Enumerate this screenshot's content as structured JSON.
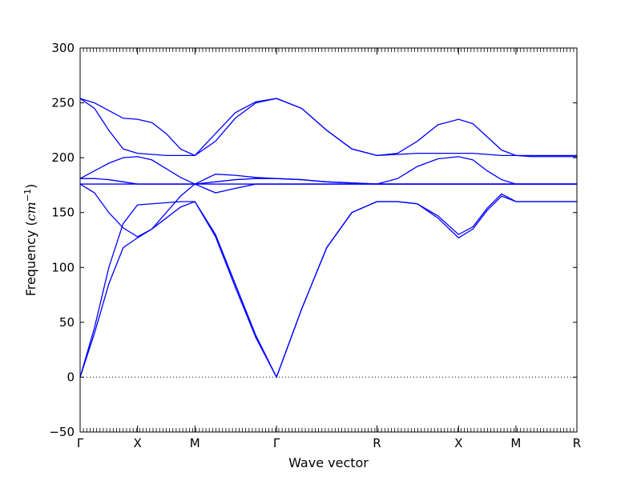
{
  "chart_data": {
    "type": "line",
    "xlabel": "Wave vector",
    "ylabel_text": "Frequency (",
    "ylabel_unit": "cm",
    "ylabel_exp": "−1",
    "ylabel_close": ")",
    "ylim": [
      -50,
      300
    ],
    "yticks": [
      -50,
      0,
      50,
      100,
      150,
      200,
      250,
      300
    ],
    "ytick_labels": [
      "−50",
      "0",
      "50",
      "100",
      "150",
      "200",
      "250",
      "300"
    ],
    "xlim": [
      0,
      5.54
    ],
    "high_symmetry_points": [
      {
        "label": "Γ",
        "x": 0.0
      },
      {
        "label": "X",
        "x": 0.64
      },
      {
        "label": "M",
        "x": 1.28
      },
      {
        "label": "Γ",
        "x": 2.19
      },
      {
        "label": "R",
        "x": 3.31
      },
      {
        "label": "X",
        "x": 4.22
      },
      {
        "label": "M",
        "x": 4.86
      },
      {
        "label": "R",
        "x": 5.54
      }
    ],
    "zero_line": {
      "y": 0,
      "style": "dotted"
    },
    "line_color": "#0000ff",
    "grid": false,
    "series": [
      {
        "x": [
          0,
          0.16,
          0.32,
          0.48,
          0.64,
          0.8,
          0.96,
          1.12,
          1.28,
          1.51,
          1.73,
          1.96,
          2.19,
          2.47,
          2.75,
          3.03,
          3.31,
          3.54,
          3.76,
          3.99,
          4.22,
          4.38,
          4.54,
          4.7,
          4.86,
          5.03,
          5.2,
          5.37,
          5.54
        ],
        "y": [
          0,
          40,
          85,
          118,
          127,
          135,
          145,
          155,
          160,
          130,
          85,
          38,
          0,
          62,
          118,
          150,
          160,
          160,
          158,
          145,
          127,
          135,
          152,
          165,
          160,
          160,
          160,
          160,
          160
        ]
      },
      {
        "x": [
          0,
          0.16,
          0.32,
          0.48,
          0.64,
          0.8,
          0.96,
          1.12,
          1.28,
          1.51,
          1.73,
          1.96,
          2.19,
          2.47,
          2.75,
          3.03,
          3.31,
          3.54,
          3.76,
          3.99,
          4.22,
          4.38,
          4.54,
          4.7,
          4.86,
          5.03,
          5.2,
          5.37,
          5.54
        ],
        "y": [
          0,
          45,
          100,
          140,
          157,
          158,
          159,
          160,
          160,
          128,
          82,
          36,
          0,
          62,
          118,
          150,
          160,
          160,
          158,
          147,
          130,
          137,
          154,
          167,
          160,
          160,
          160,
          160,
          160
        ]
      },
      {
        "x": [
          0,
          0.16,
          0.32,
          0.48,
          0.64,
          0.8,
          0.96,
          1.12,
          1.28,
          1.51,
          1.73,
          1.96,
          2.19,
          2.47,
          2.75,
          3.03,
          3.31,
          3.54,
          3.76,
          3.99,
          4.22,
          4.38,
          4.54,
          4.7,
          4.86,
          5.03,
          5.2,
          5.37,
          5.54
        ],
        "y": [
          176,
          168,
          150,
          136,
          128,
          135,
          150,
          165,
          176,
          176,
          176,
          176,
          176,
          176,
          176,
          176,
          176,
          176,
          176,
          176,
          176,
          176,
          176,
          176,
          176,
          176,
          176,
          176,
          176
        ]
      },
      {
        "x": [
          0,
          0.16,
          0.32,
          0.48,
          0.64,
          0.8,
          0.96,
          1.12,
          1.28,
          1.51,
          1.73,
          1.96,
          2.19,
          2.47,
          2.75,
          3.03,
          3.31,
          3.54,
          3.76,
          3.99,
          4.22,
          4.38,
          4.54,
          4.7,
          4.86,
          5.03,
          5.2,
          5.37,
          5.54
        ],
        "y": [
          176,
          176,
          176,
          176,
          176,
          176,
          176,
          176,
          176,
          168,
          172,
          176,
          176,
          176,
          176,
          176,
          176,
          176,
          176,
          176,
          176,
          176,
          176,
          176,
          176,
          176,
          176,
          176,
          176
        ]
      },
      {
        "x": [
          0,
          0.16,
          0.32,
          0.48,
          0.64,
          0.8,
          0.96,
          1.12,
          1.28,
          1.51,
          1.73,
          1.96,
          2.19,
          2.47,
          2.75,
          3.03,
          3.31,
          3.54,
          3.76,
          3.99,
          4.22,
          4.38,
          4.54,
          4.7,
          4.86,
          5.03,
          5.2,
          5.37,
          5.54
        ],
        "y": [
          181,
          181,
          180,
          178,
          176,
          176,
          176,
          176,
          176,
          178,
          180,
          181,
          181,
          180,
          178,
          177,
          176,
          176,
          176,
          176,
          176,
          176,
          176,
          176,
          176,
          176,
          176,
          176,
          176
        ]
      },
      {
        "x": [
          0,
          0.16,
          0.32,
          0.48,
          0.64,
          0.8,
          0.96,
          1.12,
          1.28,
          1.51,
          1.73,
          1.96,
          2.19,
          2.47,
          2.75,
          3.03,
          3.31,
          3.54,
          3.76,
          3.99,
          4.22,
          4.38,
          4.54,
          4.7,
          4.86,
          5.03,
          5.2,
          5.37,
          5.54
        ],
        "y": [
          181,
          188,
          195,
          200,
          201,
          198,
          190,
          182,
          176,
          185,
          184,
          182,
          181,
          180,
          178,
          177,
          176,
          181,
          192,
          199,
          201,
          198,
          188,
          180,
          176,
          176,
          176,
          176,
          176
        ]
      },
      {
        "x": [
          0,
          0.16,
          0.32,
          0.48,
          0.64,
          0.8,
          0.96,
          1.12,
          1.28,
          1.51,
          1.73,
          1.96,
          2.19,
          2.47,
          2.75,
          3.03,
          3.31,
          3.54,
          3.76,
          3.99,
          4.22,
          4.38,
          4.54,
          4.7,
          4.86,
          5.03,
          5.2,
          5.37,
          5.54
        ],
        "y": [
          254,
          245,
          225,
          208,
          204,
          203,
          202,
          202,
          202,
          222,
          241,
          251,
          254,
          245,
          225,
          208,
          202,
          203,
          204,
          204,
          204,
          204,
          203,
          202,
          202,
          202,
          202,
          202,
          202
        ]
      },
      {
        "x": [
          0,
          0.16,
          0.32,
          0.48,
          0.64,
          0.8,
          0.96,
          1.12,
          1.28,
          1.51,
          1.73,
          1.96,
          2.19,
          2.47,
          2.75,
          3.03,
          3.31,
          3.54,
          3.76,
          3.99,
          4.22,
          4.38,
          4.54,
          4.7,
          4.86,
          5.03,
          5.2,
          5.37,
          5.54
        ],
        "y": [
          254,
          250,
          243,
          236,
          235,
          232,
          222,
          208,
          202,
          215,
          236,
          250,
          254,
          245,
          225,
          208,
          202,
          204,
          215,
          230,
          235,
          231,
          219,
          207,
          202,
          201,
          201,
          201,
          201
        ]
      }
    ]
  }
}
